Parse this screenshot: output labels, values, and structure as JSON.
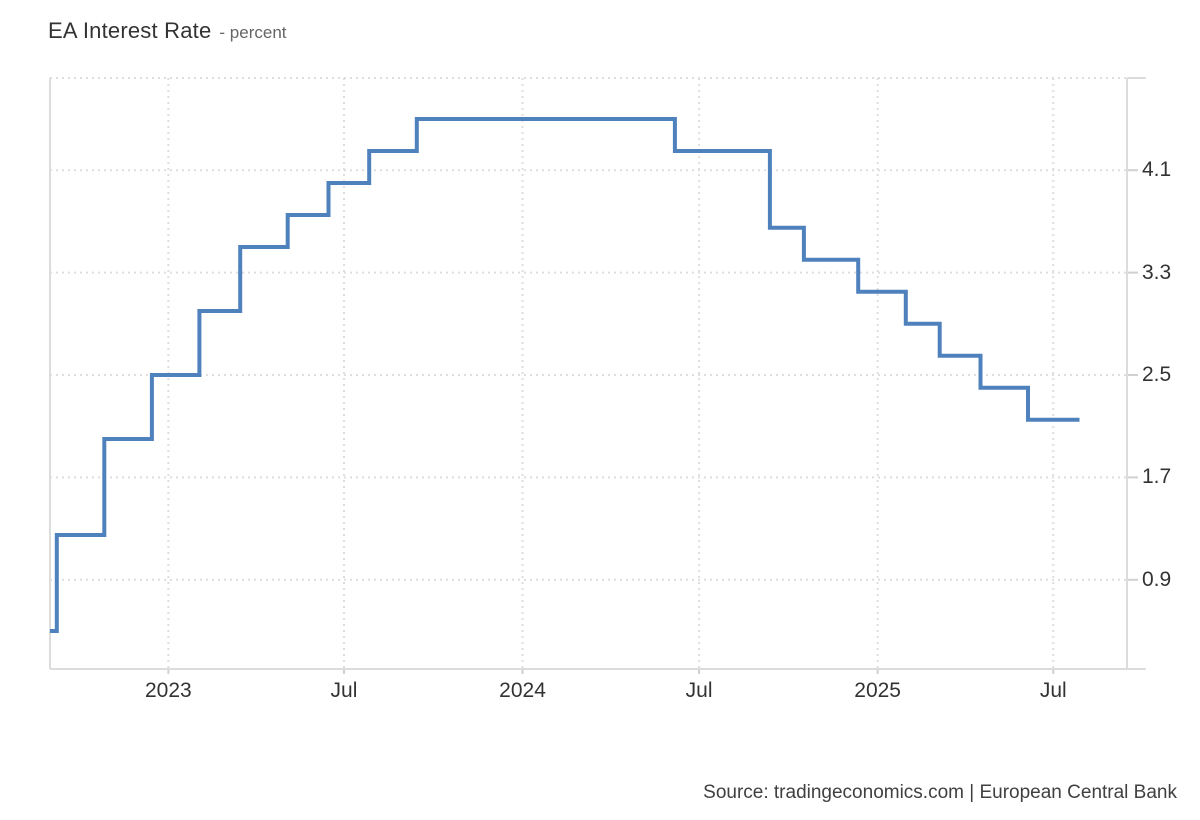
{
  "title": {
    "text": "EA Interest Rate",
    "subtitle": "- percent"
  },
  "source": {
    "text": "Source: tradingeconomics.com | European Central Bank"
  },
  "chart_data": {
    "type": "line",
    "step": true,
    "title": "EA Interest Rate",
    "ylabel": "percent",
    "grid": true,
    "legend": false,
    "x_domain": [
      "2022-09-01",
      "2025-09-15"
    ],
    "y_domain": [
      0.2031,
      4.8203
    ],
    "series": [
      {
        "name": "EA Interest Rate",
        "points": [
          [
            "2022-09-01",
            0.5
          ],
          [
            "2022-09-08",
            1.25
          ],
          [
            "2022-10-27",
            2.0
          ],
          [
            "2022-12-15",
            2.5
          ],
          [
            "2023-02-02",
            3.0
          ],
          [
            "2023-03-16",
            3.5
          ],
          [
            "2023-05-04",
            3.75
          ],
          [
            "2023-06-15",
            4.0
          ],
          [
            "2023-07-27",
            4.25
          ],
          [
            "2023-09-14",
            4.5
          ],
          [
            "2024-06-06",
            4.25
          ],
          [
            "2024-09-12",
            3.65
          ],
          [
            "2024-10-17",
            3.4
          ],
          [
            "2024-12-12",
            3.15
          ],
          [
            "2025-01-30",
            2.9
          ],
          [
            "2025-03-06",
            2.65
          ],
          [
            "2025-04-17",
            2.4
          ],
          [
            "2025-06-05",
            2.15
          ],
          [
            "2025-07-28",
            2.15
          ]
        ]
      }
    ],
    "x_ticks": [
      {
        "date": "2023-01-01",
        "label": "2023"
      },
      {
        "date": "2023-07-01",
        "label": "Jul"
      },
      {
        "date": "2024-01-01",
        "label": "2024"
      },
      {
        "date": "2024-07-01",
        "label": "Jul"
      },
      {
        "date": "2025-01-01",
        "label": "2025"
      },
      {
        "date": "2025-07-01",
        "label": "Jul"
      }
    ],
    "y_ticks": [
      {
        "value": 4.1,
        "label": "4.1"
      },
      {
        "value": 3.3,
        "label": "3.3"
      },
      {
        "value": 2.5,
        "label": "2.5"
      },
      {
        "value": 1.7,
        "label": "1.7"
      },
      {
        "value": 0.9,
        "label": "0.9"
      }
    ],
    "colors": {
      "line": "#4f81bd",
      "grid": "#dedede",
      "border": "#dcdcdc",
      "tick": "#d0d0d0",
      "label": "#333333"
    }
  }
}
